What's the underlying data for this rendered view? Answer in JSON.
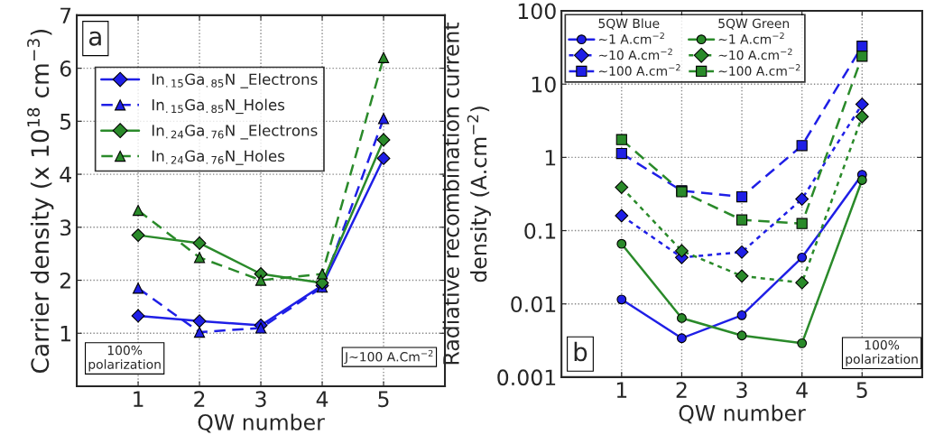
{
  "chart_data": [
    {
      "type": "line",
      "xlabel": "QW number",
      "ylabel": "Carrier density (x 10$^{18}$ cm$^{−3}$)",
      "x": [
        1,
        2,
        3,
        4,
        5
      ],
      "xlim": [
        0,
        6
      ],
      "xticks": [
        1,
        2,
        3,
        4,
        5
      ],
      "ylim": [
        0,
        7
      ],
      "yticks": [
        1,
        2,
        3,
        4,
        5,
        6,
        7
      ],
      "grid": true,
      "legend": "top left",
      "annotations": [
        "a",
        "100%\npolarization",
        "J~100 A.Cm$^{−2}$"
      ],
      "series": [
        {
          "name": "In$_{.15}$Ga$_{.85}$N _Electrons",
          "color": "#1f1fe6",
          "marker": "diamond",
          "line_style": "solid",
          "values": [
            1.33,
            1.23,
            1.15,
            1.9,
            4.3
          ]
        },
        {
          "name": "In$_{.15}$Ga$_{.85}$N_Holes",
          "color": "#1f1fe6",
          "marker": "triangle",
          "line_style": "dashed",
          "values": [
            1.85,
            1.02,
            1.1,
            1.87,
            5.05
          ]
        },
        {
          "name": "In$_{.24}$Ga$_{.76}$N _Electrons",
          "color": "#2a8a2a",
          "marker": "diamond",
          "line_style": "solid",
          "values": [
            2.85,
            2.7,
            2.12,
            1.95,
            4.65
          ]
        },
        {
          "name": "In$_{.24}$Ga$_{.76}$N_Holes",
          "color": "#2a8a2a",
          "marker": "triangle",
          "line_style": "dashed",
          "values": [
            3.32,
            2.43,
            2.0,
            2.12,
            6.2
          ]
        }
      ]
    },
    {
      "type": "line",
      "xlabel": "QW number",
      "ylabel": "Radiative recombination current\ndensity (A.cm$^{−2}$)",
      "x": [
        1,
        2,
        3,
        4,
        5
      ],
      "xlim": [
        0,
        6
      ],
      "xticks": [
        1,
        2,
        3,
        4,
        5
      ],
      "log": "y",
      "ylim": [
        0.001,
        100
      ],
      "yticks": [
        0.001,
        0.01,
        0.1,
        1,
        10,
        100
      ],
      "grid": true,
      "legend": "top left",
      "annotations": [
        "5QW Blue",
        "5QW Green",
        "b",
        "100%\npolarization"
      ],
      "series": [
        {
          "name": "~1 A.cm$^{−2}$",
          "color": "#1f1fe6",
          "marker": "circle",
          "line_style": "solid",
          "values": [
            0.0115,
            0.0034,
            0.007,
            0.043,
            0.58
          ]
        },
        {
          "name": "~10 A.cm$^{−2}$",
          "color": "#1f1fe6",
          "marker": "diamond",
          "line_style": "dotted",
          "values": [
            0.16,
            0.043,
            0.051,
            0.27,
            5.3
          ]
        },
        {
          "name": "~100 A.cm$^{−2}$",
          "color": "#1f1fe6",
          "marker": "square",
          "line_style": "dashed",
          "values": [
            1.13,
            0.35,
            0.29,
            1.45,
            33
          ]
        },
        {
          "name": "~1 A.cm$^{−2}$",
          "color": "#2a8a2a",
          "marker": "circle",
          "line_style": "solid",
          "values": [
            0.066,
            0.0064,
            0.0037,
            0.0029,
            0.49
          ]
        },
        {
          "name": "~10 A.cm$^{−2}$",
          "color": "#2a8a2a",
          "marker": "diamond",
          "line_style": "dotted",
          "values": [
            0.39,
            0.053,
            0.024,
            0.0195,
            3.6
          ]
        },
        {
          "name": "~100 A.cm$^{−2}$",
          "color": "#2a8a2a",
          "marker": "square",
          "line_style": "dashed",
          "values": [
            1.75,
            0.34,
            0.14,
            0.125,
            24
          ]
        }
      ]
    }
  ]
}
